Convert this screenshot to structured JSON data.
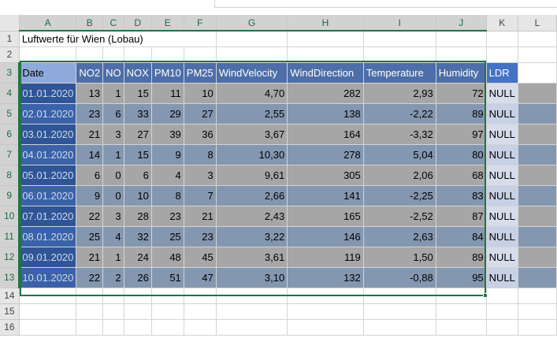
{
  "sheet": {
    "columns": [
      "A",
      "B",
      "C",
      "D",
      "E",
      "F",
      "G",
      "H",
      "I",
      "J",
      "K",
      "L"
    ],
    "row_numbers": [
      "1",
      "2",
      "3",
      "4",
      "5",
      "6",
      "7",
      "8",
      "9",
      "10",
      "11",
      "12",
      "13",
      "14",
      "15",
      "16"
    ],
    "title": "Luftwerte für Wien (Lobau)",
    "headers": [
      "Date",
      "NO2",
      "NO",
      "NOX",
      "PM10",
      "PM25",
      "WindVelocity",
      "WindDirection",
      "Temperature",
      "Humidity",
      "LDR"
    ],
    "rows": [
      [
        "01.01.2020",
        "13",
        "1",
        "15",
        "11",
        "10",
        "4,70",
        "282",
        "2,93",
        "72",
        "NULL"
      ],
      [
        "02.01.2020",
        "23",
        "6",
        "33",
        "29",
        "27",
        "2,55",
        "138",
        "-2,22",
        "89",
        "NULL"
      ],
      [
        "03.01.2020",
        "21",
        "3",
        "27",
        "39",
        "36",
        "3,67",
        "164",
        "-3,32",
        "97",
        "NULL"
      ],
      [
        "04.01.2020",
        "14",
        "1",
        "15",
        "9",
        "8",
        "10,30",
        "278",
        "5,04",
        "80",
        "NULL"
      ],
      [
        "05.01.2020",
        "6",
        "0",
        "6",
        "4",
        "3",
        "9,61",
        "305",
        "2,06",
        "68",
        "NULL"
      ],
      [
        "06.01.2020",
        "9",
        "0",
        "10",
        "8",
        "7",
        "2,66",
        "141",
        "-2,25",
        "83",
        "NULL"
      ],
      [
        "07.01.2020",
        "22",
        "3",
        "28",
        "23",
        "21",
        "2,43",
        "165",
        "-2,52",
        "87",
        "NULL"
      ],
      [
        "08.01.2020",
        "25",
        "4",
        "32",
        "25",
        "23",
        "3,22",
        "146",
        "2,63",
        "84",
        "NULL"
      ],
      [
        "09.01.2020",
        "21",
        "1",
        "24",
        "48",
        "45",
        "3,61",
        "119",
        "1,50",
        "89",
        "NULL"
      ],
      [
        "10.01.2020",
        "22",
        "2",
        "26",
        "51",
        "47",
        "3,10",
        "132",
        "-0,88",
        "95",
        "NULL"
      ]
    ]
  }
}
